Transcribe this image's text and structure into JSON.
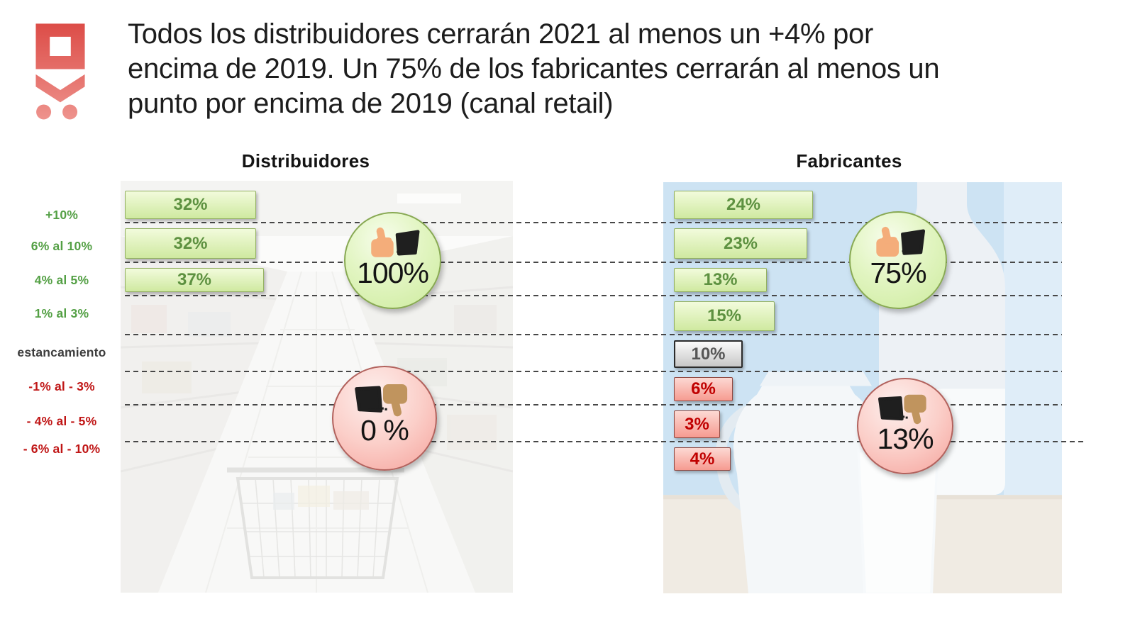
{
  "slide": {
    "title": "Todos los distribuidores cerrarán 2021 al menos un +4% por\nencima de 2019. Un 75% de los fabricantes cerrarán al menos un\npunto por encima de 2019 (canal retail)"
  },
  "row_labels": [
    {
      "label": "+10%",
      "tone": "positive"
    },
    {
      "label": "6% al 10%",
      "tone": "positive"
    },
    {
      "label": "4% al 5%",
      "tone": "positive"
    },
    {
      "label": "1% al 3%",
      "tone": "positive"
    },
    {
      "label": "estancamiento",
      "tone": "neutral"
    },
    {
      "label": "-1% al - 3%",
      "tone": "negative"
    },
    {
      "label": "- 4% al - 5%",
      "tone": "negative"
    },
    {
      "label": "- 6% al - 10%",
      "tone": "negative"
    }
  ],
  "panels": [
    {
      "title": "Distribuidores",
      "bars": [
        {
          "row": 0,
          "value": "32%",
          "tone": "positive"
        },
        {
          "row": 1,
          "value": "32%",
          "tone": "positive"
        },
        {
          "row": 2,
          "value": "37%",
          "tone": "positive"
        }
      ],
      "thumbs_up": {
        "value": "100%"
      },
      "thumbs_down": {
        "value": "0 %"
      }
    },
    {
      "title": "Fabricantes",
      "bars": [
        {
          "row": 0,
          "value": "24%",
          "tone": "positive"
        },
        {
          "row": 1,
          "value": "23%",
          "tone": "positive"
        },
        {
          "row": 2,
          "value": "13%",
          "tone": "positive"
        },
        {
          "row": 3,
          "value": "15%",
          "tone": "positive"
        },
        {
          "row": 4,
          "value": "10%",
          "tone": "neutral"
        },
        {
          "row": 5,
          "value": "6%",
          "tone": "negative"
        },
        {
          "row": 6,
          "value": "3%",
          "tone": "negative"
        },
        {
          "row": 7,
          "value": "4%",
          "tone": "negative"
        }
      ],
      "thumbs_up": {
        "value": "75%"
      },
      "thumbs_down": {
        "value": "13%"
      }
    }
  ],
  "colors": {
    "positive_label": "#54a045",
    "negative_label": "#c01616",
    "neutral_label": "#3d3d3d",
    "green_bar_border": "#93b161",
    "red_bar_border": "#8f4a43",
    "bar_value_green": "#5d9140",
    "bar_value_red": "#c00000",
    "logo_red": "#dc4b46"
  },
  "chart_data": {
    "type": "bar",
    "orientation": "horizontal",
    "title": "Todos los distribuidores cerrarán 2021 al menos un +4% por encima de 2019. Un 75% de los fabricantes cerrarán al menos un punto por encima de 2019 (canal retail)",
    "categories": [
      "+10%",
      "6% al 10%",
      "4% al 5%",
      "1% al 3%",
      "estancamiento",
      "-1% al - 3%",
      "- 4% al - 5%",
      "- 6% al - 10%"
    ],
    "series": [
      {
        "name": "Distribuidores",
        "unit": "%",
        "values": [
          32,
          32,
          37,
          0,
          0,
          0,
          0,
          0
        ]
      },
      {
        "name": "Fabricantes",
        "unit": "%",
        "values": [
          24,
          23,
          13,
          15,
          10,
          6,
          3,
          4
        ]
      }
    ],
    "summary_badges": [
      {
        "panel": "Distribuidores",
        "sentiment": "positive",
        "value": "100%"
      },
      {
        "panel": "Distribuidores",
        "sentiment": "negative",
        "value": "0 %"
      },
      {
        "panel": "Fabricantes",
        "sentiment": "positive",
        "value": "75%"
      },
      {
        "panel": "Fabricantes",
        "sentiment": "negative",
        "value": "13%"
      }
    ],
    "gridlines": "dashed-horizontal",
    "legend_position": "none"
  }
}
